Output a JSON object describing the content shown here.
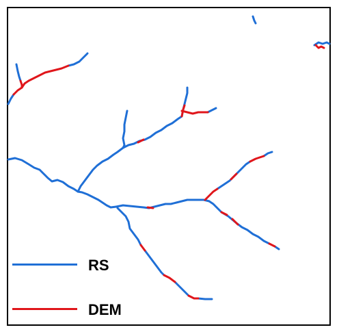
{
  "legend": {
    "rs_label": "RS",
    "dem_label": "DEM"
  },
  "colors": {
    "rs": "#1f6fd6",
    "dem": "#e0161b",
    "frame": "#000000",
    "background": "#ffffff"
  }
}
